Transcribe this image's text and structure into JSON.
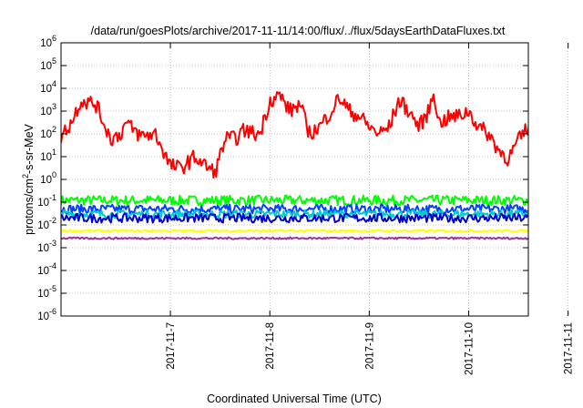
{
  "chart_data": {
    "type": "line",
    "title": "/data/run/goesPlots/archive/2017-11-11/14:00/flux/../flux/5daysEarthDataFluxes.txt",
    "xlabel": "Coordinated Universal Time (UTC)",
    "ylabel_parts": [
      "protons/cm",
      "2",
      "-s-sr-MeV"
    ],
    "y_scale": "log",
    "ylim": [
      1e-06,
      1000000.0
    ],
    "y_ticks": [
      {
        "mant": "10",
        "exp": "-6"
      },
      {
        "mant": "10",
        "exp": "-5"
      },
      {
        "mant": "10",
        "exp": "-4"
      },
      {
        "mant": "10",
        "exp": "-3"
      },
      {
        "mant": "10",
        "exp": "-2"
      },
      {
        "mant": "10",
        "exp": "-1"
      },
      {
        "mant": "10",
        "exp": "0"
      },
      {
        "mant": "10",
        "exp": "1"
      },
      {
        "mant": "10",
        "exp": "2"
      },
      {
        "mant": "10",
        "exp": "3"
      },
      {
        "mant": "10",
        "exp": "4"
      },
      {
        "mant": "10",
        "exp": "5"
      },
      {
        "mant": "10",
        "exp": "6"
      }
    ],
    "xlim_days": [
      -1.1,
      3.6
    ],
    "x_ticks": [
      {
        "label": "2017-11-7",
        "day": 0
      },
      {
        "label": "2017-11-8",
        "day": 1
      },
      {
        "label": "2017-11-9",
        "day": 2
      },
      {
        "label": "2017-11-10",
        "day": 3
      },
      {
        "label": "2017-11-11",
        "day": 4
      }
    ],
    "grid": true,
    "legend": "none",
    "series": [
      {
        "color": "#ff0000",
        "width": 2,
        "noise": 0.35,
        "x": [
          -1.1,
          -1.0,
          -0.9,
          -0.75,
          -0.6,
          -0.5,
          -0.45,
          -0.3,
          -0.15,
          0.0,
          0.1,
          0.25,
          0.35,
          0.45,
          0.55,
          0.65,
          0.75,
          0.85,
          0.9,
          1.0,
          1.1,
          1.2,
          1.3,
          1.4,
          1.5,
          1.6,
          1.7,
          1.8,
          1.9,
          2.0,
          2.1,
          2.2,
          2.3,
          2.4,
          2.5,
          2.6,
          2.65,
          2.7,
          2.8,
          2.9,
          3.0,
          3.1,
          3.2,
          3.3,
          3.4,
          3.5,
          3.6,
          3.7,
          3.8,
          3.9,
          4.0,
          4.1,
          4.2,
          4.3,
          4.4,
          4.5,
          4.6
        ],
        "y": [
          80,
          300,
          3000,
          2000,
          60,
          100,
          300,
          80,
          100,
          4,
          3,
          10,
          4,
          2,
          60,
          60,
          150,
          100,
          100,
          3000,
          5000,
          1000,
          2000,
          100,
          200,
          800,
          4000,
          1000,
          600,
          200,
          100,
          200,
          3000,
          1000,
          200,
          1000,
          8000,
          300,
          500,
          600,
          1000,
          200,
          100,
          20,
          8,
          50,
          200,
          3000,
          500,
          5000,
          10000,
          200,
          50,
          20,
          100,
          300,
          1000
        ]
      },
      {
        "color": "#00ff00",
        "width": 2,
        "noise": 0.22,
        "base": 0.12,
        "x": [
          -1.1,
          4.6
        ]
      },
      {
        "color": "#00cccc",
        "width": 2,
        "noise": 0.18,
        "base": 0.03,
        "x": [
          -1.1,
          4.6
        ]
      },
      {
        "color": "#0040ff",
        "width": 2,
        "noise": 0.2,
        "base": 0.05,
        "x": [
          -1.1,
          4.6
        ]
      },
      {
        "color": "#0000cc",
        "width": 2,
        "noise": 0.2,
        "base": 0.02,
        "x": [
          -1.1,
          4.6
        ]
      },
      {
        "color": "#ffff00",
        "width": 2,
        "noise": 0.04,
        "base": 0.0055,
        "x": [
          -1.1,
          4.6
        ]
      },
      {
        "color": "#993399",
        "width": 2,
        "noise": 0.04,
        "base": 0.0026,
        "x": [
          -1.1,
          4.6
        ]
      }
    ]
  }
}
